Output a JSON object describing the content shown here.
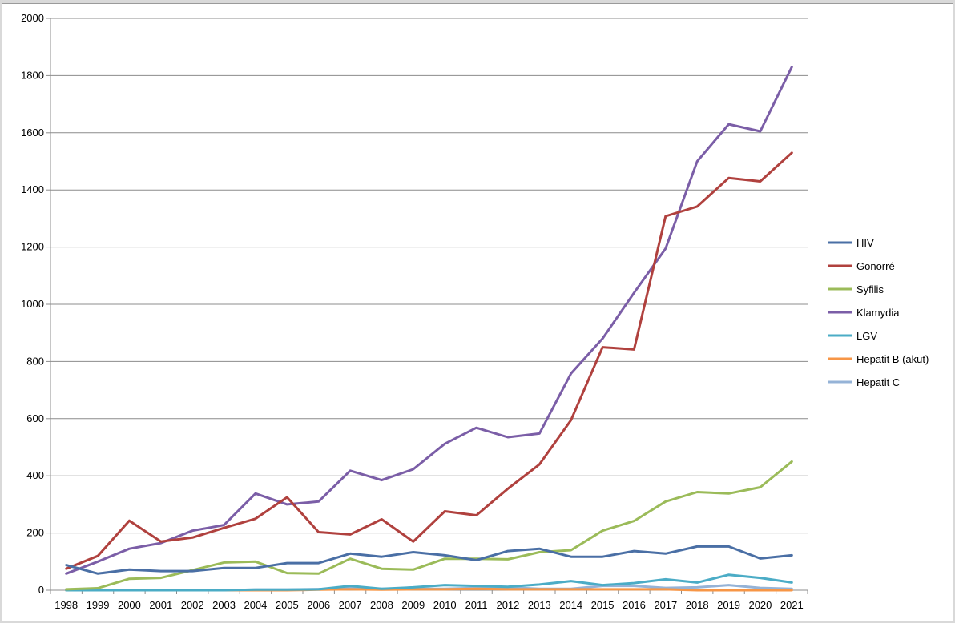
{
  "chart_data": {
    "type": "line",
    "title": "",
    "xlabel": "",
    "ylabel": "",
    "ylim": [
      0,
      2000
    ],
    "yticks": [
      0,
      200,
      400,
      600,
      800,
      1000,
      1200,
      1400,
      1600,
      1800,
      2000
    ],
    "grid": true,
    "legend_position": "right",
    "categories": [
      "1998",
      "1999",
      "2000",
      "2001",
      "2002",
      "2003",
      "2004",
      "2005",
      "2006",
      "2007",
      "2008",
      "2009",
      "2010",
      "2011",
      "2012",
      "2013",
      "2014",
      "2015",
      "2016",
      "2017",
      "2018",
      "2019",
      "2020",
      "2021"
    ],
    "series": [
      {
        "name": "HIV",
        "color": "#4a6fa5",
        "values": [
          88,
          58,
          72,
          67,
          67,
          78,
          78,
          95,
          95,
          128,
          117,
          133,
          122,
          105,
          137,
          145,
          117,
          117,
          137,
          128,
          153,
          153,
          111,
          122
        ]
      },
      {
        "name": "Gonorré",
        "color": "#b0413e",
        "values": [
          75,
          120,
          243,
          170,
          184,
          218,
          250,
          325,
          203,
          195,
          248,
          170,
          276,
          262,
          355,
          440,
          595,
          850,
          842,
          1308,
          1342,
          1442,
          1430,
          1530
        ]
      },
      {
        "name": "Syfilis",
        "color": "#9bbb59",
        "values": [
          3,
          7,
          40,
          43,
          70,
          97,
          100,
          60,
          58,
          110,
          75,
          72,
          110,
          110,
          108,
          133,
          140,
          208,
          242,
          310,
          343,
          338,
          360,
          450
        ]
      },
      {
        "name": "Klamydia",
        "color": "#7b5ea7",
        "values": [
          58,
          100,
          145,
          165,
          208,
          228,
          338,
          300,
          310,
          418,
          385,
          423,
          512,
          568,
          535,
          548,
          758,
          880,
          1040,
          1195,
          1500,
          1630,
          1605,
          1830
        ]
      },
      {
        "name": "LGV",
        "color": "#4bacc6",
        "values": [
          0,
          0,
          0,
          0,
          0,
          0,
          2,
          2,
          3,
          15,
          5,
          10,
          18,
          15,
          12,
          20,
          32,
          18,
          25,
          38,
          27,
          54,
          43,
          27
        ]
      },
      {
        "name": "Hepatit B (akut)",
        "color": "#f79646",
        "values": [
          0,
          0,
          0,
          0,
          0,
          0,
          0,
          0,
          2,
          3,
          2,
          3,
          3,
          5,
          3,
          3,
          3,
          3,
          3,
          3,
          0,
          0,
          0,
          0
        ]
      },
      {
        "name": "Hepatit C",
        "color": "#95b3d7",
        "values": [
          0,
          0,
          0,
          0,
          0,
          0,
          2,
          2,
          4,
          8,
          5,
          5,
          5,
          8,
          10,
          5,
          5,
          15,
          15,
          8,
          10,
          18,
          8,
          5
        ]
      }
    ]
  }
}
